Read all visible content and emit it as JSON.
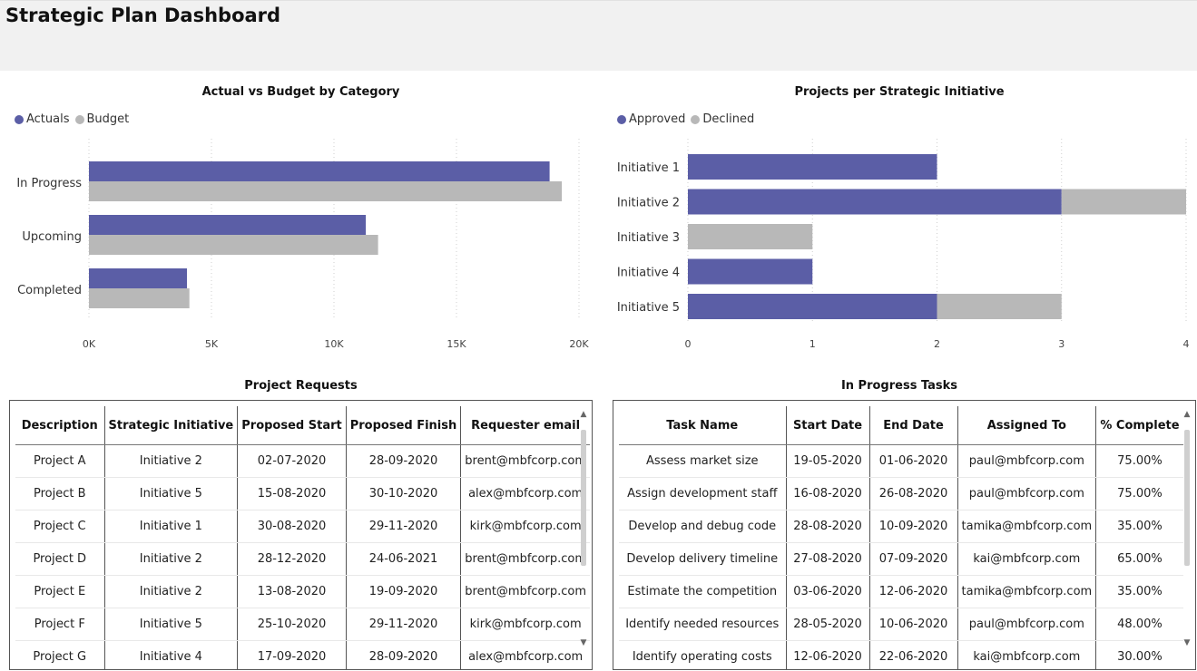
{
  "header": {
    "title": "Strategic Plan Dashboard"
  },
  "colors": {
    "primary": "#5b5ea6",
    "secondary": "#b8b8b8"
  },
  "chart_actual_budget": {
    "title": "Actual vs Budget by Category",
    "legend": [
      "Actuals",
      "Budget"
    ]
  },
  "chart_projects": {
    "title": "Projects per Strategic Initiative",
    "legend": [
      "Approved",
      "Declined"
    ]
  },
  "chart_data": [
    {
      "type": "bar",
      "orientation": "horizontal",
      "title": "Actual vs Budget by Category",
      "categories": [
        "In Progress",
        "Upcoming",
        "Completed"
      ],
      "series": [
        {
          "name": "Actuals",
          "values": [
            18800,
            11300,
            4000
          ]
        },
        {
          "name": "Budget",
          "values": [
            19300,
            11800,
            4100
          ]
        }
      ],
      "xlim": [
        0,
        20000
      ],
      "xticks": [
        "0K",
        "5K",
        "10K",
        "15K",
        "20K"
      ],
      "grid": true,
      "legend_position": "top-left"
    },
    {
      "type": "bar",
      "orientation": "horizontal",
      "stacked": true,
      "title": "Projects per Strategic Initiative",
      "categories": [
        "Initiative 1",
        "Initiative 2",
        "Initiative 3",
        "Initiative 4",
        "Initiative 5"
      ],
      "series": [
        {
          "name": "Approved",
          "values": [
            2,
            3,
            0,
            1,
            2
          ]
        },
        {
          "name": "Declined",
          "values": [
            0,
            1,
            1,
            0,
            1
          ]
        }
      ],
      "xlim": [
        0,
        4
      ],
      "xticks": [
        "0",
        "1",
        "2",
        "3",
        "4"
      ],
      "grid": true,
      "legend_position": "top-left"
    }
  ],
  "requests": {
    "title": "Project Requests",
    "columns": [
      "Description",
      "Strategic Initiative",
      "Proposed Start",
      "Proposed Finish",
      "Requester email"
    ],
    "rows": [
      [
        "Project A",
        "Initiative 2",
        "02-07-2020",
        "28-09-2020",
        "brent@mbfcorp.com"
      ],
      [
        "Project B",
        "Initiative 5",
        "15-08-2020",
        "30-10-2020",
        "alex@mbfcorp.com"
      ],
      [
        "Project C",
        "Initiative 1",
        "30-08-2020",
        "29-11-2020",
        "kirk@mbfcorp.com"
      ],
      [
        "Project D",
        "Initiative 2",
        "28-12-2020",
        "24-06-2021",
        "brent@mbfcorp.com"
      ],
      [
        "Project E",
        "Initiative 2",
        "13-08-2020",
        "19-09-2020",
        "brent@mbfcorp.com"
      ],
      [
        "Project F",
        "Initiative 5",
        "25-10-2020",
        "29-11-2020",
        "kirk@mbfcorp.com"
      ],
      [
        "Project G",
        "Initiative 4",
        "17-09-2020",
        "28-09-2020",
        "alex@mbfcorp.com"
      ]
    ]
  },
  "tasks": {
    "title": "In Progress Tasks",
    "columns": [
      "Task Name",
      "Start Date",
      "End Date",
      "Assigned To",
      "% Complete"
    ],
    "rows": [
      [
        "Assess market size",
        "19-05-2020",
        "01-06-2020",
        "paul@mbfcorp.com",
        "75.00%"
      ],
      [
        "Assign development staff",
        "16-08-2020",
        "26-08-2020",
        "paul@mbfcorp.com",
        "75.00%"
      ],
      [
        "Develop and debug code",
        "28-08-2020",
        "10-09-2020",
        "tamika@mbfcorp.com",
        "35.00%"
      ],
      [
        "Develop delivery timeline",
        "27-08-2020",
        "07-09-2020",
        "kai@mbfcorp.com",
        "65.00%"
      ],
      [
        "Estimate the competition",
        "03-06-2020",
        "12-06-2020",
        "tamika@mbfcorp.com",
        "35.00%"
      ],
      [
        "Identify needed resources",
        "28-05-2020",
        "10-06-2020",
        "paul@mbfcorp.com",
        "48.00%"
      ],
      [
        "Identify operating costs",
        "12-06-2020",
        "22-06-2020",
        "kai@mbfcorp.com",
        "30.00%"
      ]
    ]
  },
  "scroll_icons": {
    "up": "chevron-up-icon",
    "down": "chevron-down-icon"
  }
}
